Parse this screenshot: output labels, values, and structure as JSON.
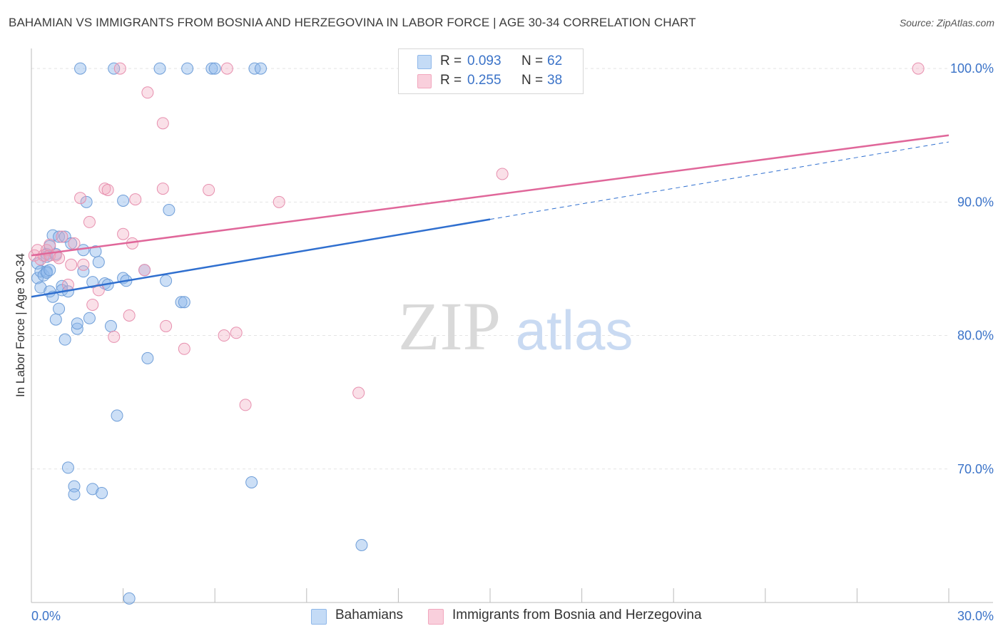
{
  "header": {
    "title": "BAHAMIAN VS IMMIGRANTS FROM BOSNIA AND HERZEGOVINA IN LABOR FORCE | AGE 30-34 CORRELATION CHART",
    "source": "Source: ZipAtlas.com"
  },
  "watermark": {
    "zip": "ZIP",
    "atlas": "atlas"
  },
  "legend": {
    "r_label": "R =",
    "n_label": "N =",
    "rows": [
      {
        "r": "0.093",
        "n": "62"
      },
      {
        "r": "0.255",
        "n": "38"
      }
    ]
  },
  "bottom_legend": {
    "series0": "Bahamians",
    "series1": "Immigrants from Bosnia and Herzegovina"
  },
  "chart_data": {
    "type": "scatter",
    "ylabel": "In Labor Force | Age 30-34",
    "xlim": [
      0,
      30
    ],
    "ylim": [
      60,
      101.5
    ],
    "x_tick_labels": [
      "0.0%",
      "30.0%"
    ],
    "y_ticks": [
      70,
      80,
      90,
      100
    ],
    "y_tick_labels": [
      "70.0%",
      "80.0%",
      "90.0%",
      "100.0%"
    ],
    "grid": true,
    "colors": {
      "series0": "#8fb8ea",
      "series1": "#f2a7be",
      "line0": "#2f6fcf",
      "line1": "#e0679a",
      "tick_label": "#3b73c8"
    },
    "series": [
      {
        "name": "Bahamians",
        "r": 0.093,
        "n": 62,
        "trend": {
          "x": [
            0,
            15
          ],
          "y": [
            82.9,
            88.7
          ],
          "dashed_to": {
            "x": 30,
            "y": 94.5
          }
        },
        "points": [
          [
            0.2,
            84.3
          ],
          [
            0.2,
            85.4
          ],
          [
            0.3,
            83.6
          ],
          [
            0.3,
            84.8
          ],
          [
            0.4,
            84.5
          ],
          [
            0.5,
            86.1
          ],
          [
            0.5,
            84.8
          ],
          [
            0.5,
            85.9
          ],
          [
            0.5,
            84.7
          ],
          [
            0.6,
            83.3
          ],
          [
            0.6,
            86.7
          ],
          [
            0.6,
            84.9
          ],
          [
            0.7,
            87.5
          ],
          [
            0.7,
            82.9
          ],
          [
            0.8,
            81.2
          ],
          [
            0.8,
            86.1
          ],
          [
            0.9,
            87.4
          ],
          [
            0.9,
            82.0
          ],
          [
            1.0,
            83.7
          ],
          [
            1.0,
            83.4
          ],
          [
            1.1,
            79.7
          ],
          [
            1.1,
            87.4
          ],
          [
            1.2,
            83.3
          ],
          [
            1.2,
            70.1
          ],
          [
            1.3,
            86.9
          ],
          [
            1.4,
            68.7
          ],
          [
            1.4,
            68.1
          ],
          [
            1.5,
            80.5
          ],
          [
            1.5,
            80.9
          ],
          [
            1.6,
            100.0
          ],
          [
            1.7,
            86.4
          ],
          [
            1.7,
            84.8
          ],
          [
            1.8,
            90.0
          ],
          [
            1.9,
            81.3
          ],
          [
            2.0,
            68.5
          ],
          [
            2.0,
            84.0
          ],
          [
            2.1,
            86.3
          ],
          [
            2.2,
            85.5
          ],
          [
            2.3,
            68.2
          ],
          [
            2.4,
            83.9
          ],
          [
            2.5,
            83.8
          ],
          [
            2.6,
            80.7
          ],
          [
            2.7,
            100.0
          ],
          [
            2.8,
            74.0
          ],
          [
            3.0,
            90.1
          ],
          [
            3.0,
            84.3
          ],
          [
            3.1,
            84.1
          ],
          [
            3.2,
            60.3
          ],
          [
            3.7,
            84.9
          ],
          [
            3.8,
            78.3
          ],
          [
            4.2,
            100.0
          ],
          [
            4.4,
            84.1
          ],
          [
            4.5,
            89.4
          ],
          [
            4.9,
            82.5
          ],
          [
            5.0,
            82.5
          ],
          [
            5.1,
            100.0
          ],
          [
            5.9,
            100.0
          ],
          [
            6.0,
            100.0
          ],
          [
            7.2,
            69.0
          ],
          [
            7.3,
            100.0
          ],
          [
            7.5,
            100.0
          ],
          [
            10.8,
            64.3
          ]
        ]
      },
      {
        "name": "Immigrants from Bosnia and Herzegovina",
        "r": 0.255,
        "n": 38,
        "trend": {
          "x": [
            0,
            30
          ],
          "y": [
            86.0,
            95.0
          ]
        },
        "points": [
          [
            0.1,
            86.0
          ],
          [
            0.2,
            86.4
          ],
          [
            0.3,
            85.7
          ],
          [
            0.4,
            86.0
          ],
          [
            0.5,
            86.4
          ],
          [
            0.6,
            86.0
          ],
          [
            0.6,
            86.8
          ],
          [
            0.8,
            86.0
          ],
          [
            0.9,
            85.8
          ],
          [
            1.0,
            87.4
          ],
          [
            1.2,
            83.8
          ],
          [
            1.3,
            85.3
          ],
          [
            1.4,
            86.9
          ],
          [
            1.6,
            90.3
          ],
          [
            1.7,
            85.3
          ],
          [
            1.9,
            88.5
          ],
          [
            2.0,
            82.3
          ],
          [
            2.2,
            83.4
          ],
          [
            2.4,
            91.0
          ],
          [
            2.5,
            90.9
          ],
          [
            2.7,
            79.9
          ],
          [
            3.0,
            87.6
          ],
          [
            3.2,
            81.5
          ],
          [
            3.3,
            86.9
          ],
          [
            3.4,
            90.2
          ],
          [
            3.7,
            84.9
          ],
          [
            3.8,
            98.2
          ],
          [
            4.3,
            95.9
          ],
          [
            4.3,
            91.0
          ],
          [
            4.4,
            80.7
          ],
          [
            5.0,
            79.0
          ],
          [
            5.8,
            90.9
          ],
          [
            6.3,
            80.0
          ],
          [
            6.7,
            80.2
          ],
          [
            7.0,
            74.8
          ],
          [
            8.1,
            90.0
          ],
          [
            10.7,
            75.7
          ],
          [
            15.4,
            92.1
          ]
        ]
      }
    ],
    "extra_points_series1": [
      [
        2.9,
        100.0
      ],
      [
        6.4,
        100.0
      ],
      [
        29.0,
        100.0
      ]
    ]
  }
}
